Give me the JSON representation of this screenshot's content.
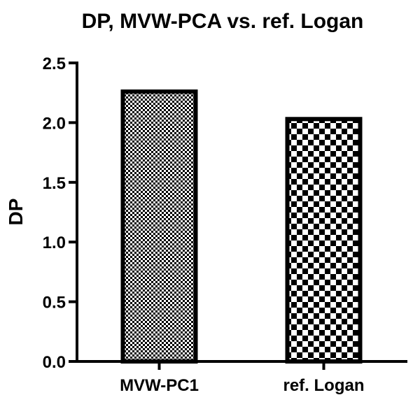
{
  "chart_data": {
    "type": "bar",
    "title": "DP, MVW-PCA vs. ref. Logan",
    "xlabel": "",
    "ylabel": "DP",
    "categories": [
      "MVW-PC1",
      "ref. Logan"
    ],
    "values": [
      2.26,
      2.03
    ],
    "ylim": [
      0,
      2.5
    ],
    "yticks": [
      "0.0",
      "0.5",
      "1.0",
      "1.5",
      "2.0",
      "2.5"
    ],
    "grid": false,
    "legend": "none",
    "bar_fill_patterns": [
      "fine-checker",
      "coarse-checker"
    ],
    "colors": {
      "bar_stroke": "#000000",
      "pattern_dark": "#000000",
      "pattern_light": "#ffffff"
    }
  }
}
